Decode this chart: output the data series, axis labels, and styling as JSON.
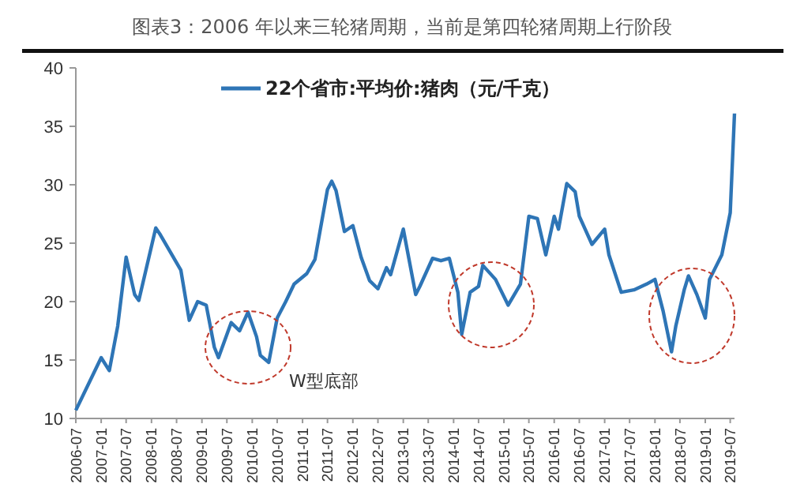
{
  "chart_data": {
    "type": "line",
    "title": "图表3：2006 年以来三轮猪周期，当前是第四轮猪周期上行阶段",
    "annotations": [
      "W型底部"
    ],
    "x": [
      "2006-07",
      "2007-01",
      "2007-03",
      "2007-05",
      "2007-07",
      "2007-09",
      "2007-10",
      "2008-02",
      "2008-03",
      "2008-08",
      "2008-10",
      "2008-12",
      "2009-02",
      "2009-04",
      "2009-05",
      "2009-08",
      "2009-10",
      "2009-12",
      "2010-02",
      "2010-03",
      "2010-05",
      "2010-07",
      "2010-09",
      "2010-11",
      "2011-02",
      "2011-04",
      "2011-07",
      "2011-08",
      "2011-09",
      "2011-11",
      "2012-01",
      "2012-03",
      "2012-05",
      "2012-07",
      "2012-09",
      "2012-10",
      "2013-01",
      "2013-04",
      "2013-05",
      "2013-08",
      "2013-10",
      "2013-12",
      "2014-02",
      "2014-03",
      "2014-05",
      "2014-07",
      "2014-08",
      "2014-11",
      "2015-02",
      "2015-05",
      "2015-07",
      "2015-09",
      "2015-11",
      "2016-01",
      "2016-02",
      "2016-04",
      "2016-06",
      "2016-07",
      "2016-10",
      "2017-01",
      "2017-02",
      "2017-05",
      "2017-08",
      "2017-11",
      "2018-01",
      "2018-03",
      "2018-05",
      "2018-06",
      "2018-08",
      "2018-09",
      "2018-11",
      "2019-01",
      "2019-02",
      "2019-05",
      "2019-07",
      "2019-08"
    ],
    "series": [
      {
        "name": "22个省市:平均价:猪肉（元/千克）",
        "color": "#2e75b6",
        "values": [
          10.7,
          15.2,
          14.1,
          17.9,
          23.8,
          20.6,
          20.1,
          26.3,
          25.8,
          22.7,
          18.4,
          20.0,
          19.7,
          16.1,
          15.2,
          18.2,
          17.5,
          19.1,
          17.0,
          15.4,
          14.8,
          18.6,
          20.0,
          21.5,
          22.4,
          23.6,
          29.6,
          30.3,
          29.5,
          26.0,
          26.5,
          23.8,
          21.8,
          21.1,
          22.9,
          22.3,
          26.2,
          20.6,
          21.3,
          23.7,
          23.5,
          23.7,
          20.8,
          17.2,
          20.8,
          21.3,
          23.1,
          21.9,
          19.7,
          21.5,
          27.3,
          27.1,
          24.0,
          27.3,
          26.2,
          30.1,
          29.4,
          27.3,
          24.9,
          26.2,
          24.0,
          20.8,
          21.0,
          21.5,
          21.9,
          19.2,
          15.7,
          17.9,
          21.0,
          22.2,
          20.6,
          18.6,
          21.9,
          24.0,
          27.6,
          36.1
        ]
      }
    ],
    "xlim": [
      "2006-07",
      "2019-08"
    ],
    "xticks": [
      "2006-07",
      "2007-01",
      "2007-07",
      "2008-01",
      "2008-07",
      "2009-01",
      "2009-07",
      "2010-01",
      "2010-07",
      "2011-01",
      "2011-07",
      "2012-01",
      "2012-07",
      "2013-01",
      "2013-07",
      "2014-01",
      "2014-07",
      "2015-01",
      "2015-07",
      "2016-01",
      "2016-07",
      "2017-01",
      "2017-07",
      "2018-01",
      "2018-07",
      "2019-01",
      "2019-07"
    ],
    "ylim": [
      10,
      40
    ],
    "yticks": [
      10,
      15,
      20,
      25,
      30,
      35,
      40
    ],
    "legend": "top",
    "grid": false
  }
}
